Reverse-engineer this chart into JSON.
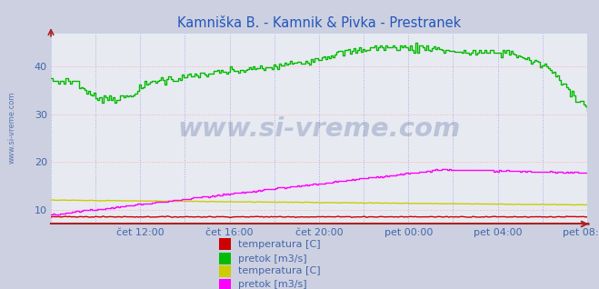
{
  "title": "Kamniška B. - Kamnik & Pivka - Prestranek",
  "title_color": "#2255bb",
  "bg_color": "#ccd0e0",
  "plot_bg_color": "#e8eaf2",
  "grid_color_h": "#ffaaaa",
  "grid_color_v": "#aaaadd",
  "ylim": [
    7,
    47
  ],
  "yticks": [
    10,
    20,
    30,
    40
  ],
  "xtick_labels": [
    "čet 12:00",
    "čet 16:00",
    "čet 20:00",
    "pet 00:00",
    "pet 04:00",
    "pet 08:00"
  ],
  "xtick_color": "#4466aa",
  "ytick_color": "#4466aa",
  "watermark": "www.si-vreme.com",
  "watermark_color": "#1a3a7a",
  "watermark_alpha": 0.22,
  "left_label": "www.si-vreme.com",
  "left_label_color": "#4466aa",
  "axis_bottom_color": "#aa2222",
  "kamnik_pretok_color": "#00bb00",
  "kamnik_temp_color": "#cc0000",
  "pivka_temp_color": "#cccc00",
  "pivka_pretok_color": "#ff00ff",
  "legend": [
    {
      "label": "temperatura [C]",
      "color": "#cc0000",
      "group": 1
    },
    {
      "label": "pretok [m3/s]",
      "color": "#00bb00",
      "group": 1
    },
    {
      "label": "temperatura [C]",
      "color": "#cccc00",
      "group": 2
    },
    {
      "label": "pretok [m3/s]",
      "color": "#ff00ff",
      "group": 2
    }
  ]
}
